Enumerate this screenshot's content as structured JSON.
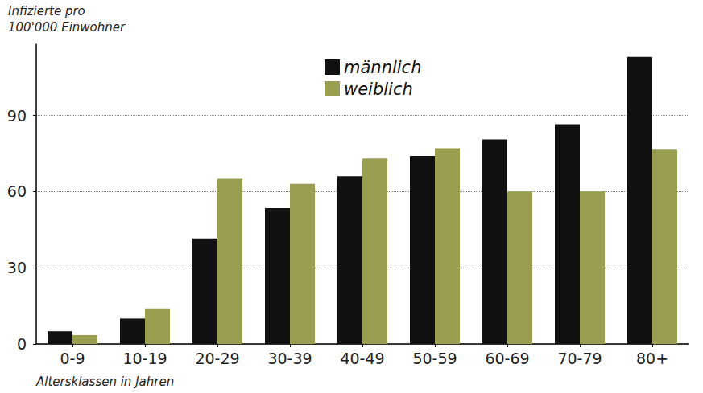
{
  "chart_data": {
    "type": "bar",
    "y_label": "Infizierte pro\n100'000 Einwohner",
    "x_label": "Altersklassen in Jahren",
    "categories": [
      "0-9",
      "10-19",
      "20-29",
      "30-39",
      "40-49",
      "50-59",
      "60-69",
      "70-79",
      "80+"
    ],
    "series": [
      {
        "name": "männlich",
        "color": "#111111",
        "values": [
          5,
          10,
          41.5,
          53.5,
          66,
          74,
          80.5,
          86.5,
          113
        ]
      },
      {
        "name": "weiblich",
        "color": "#9a9e50",
        "values": [
          3.5,
          14,
          65,
          63,
          73,
          77,
          60,
          60,
          76.5
        ]
      }
    ],
    "ylim": [
      0,
      118
    ],
    "yticks": [
      0,
      30,
      60,
      90
    ],
    "grid": true
  }
}
